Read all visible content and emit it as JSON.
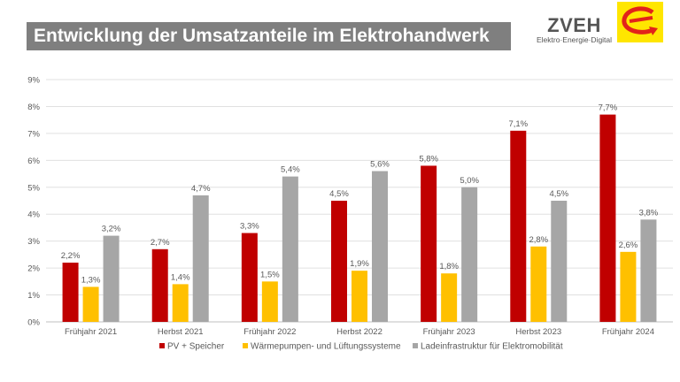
{
  "title": "Entwicklung der Umsatzanteile im Elektrohandwerk",
  "logo": {
    "name": "ZVEH",
    "subtitle": "Elektro·Energie·Digital",
    "brand_color": "#FFE600",
    "mark_color": "#E2231A"
  },
  "chart_data": {
    "type": "bar",
    "title": "",
    "xlabel": "",
    "ylabel": "",
    "ylim": [
      0,
      9
    ],
    "yticks": [
      "0%",
      "1%",
      "2%",
      "3%",
      "4%",
      "5%",
      "6%",
      "7%",
      "8%",
      "9%"
    ],
    "grid": true,
    "legend_position": "bottom",
    "categories": [
      "Frühjahr 2021",
      "Herbst 2021",
      "Frühjahr 2022",
      "Herbst 2022",
      "Frühjahr 2023",
      "Herbst 2023",
      "Frühjahr 2024"
    ],
    "series": [
      {
        "name": "PV + Speicher",
        "color": "#C00000",
        "values": [
          2.2,
          2.7,
          3.3,
          4.5,
          5.8,
          7.1,
          7.7
        ],
        "labels": [
          "2,2%",
          "2,7%",
          "3,3%",
          "4,5%",
          "5,8%",
          "7,1%",
          "7,7%"
        ]
      },
      {
        "name": "Wärmepumpen- und Lüftungssysteme",
        "color": "#FFC000",
        "values": [
          1.3,
          1.4,
          1.5,
          1.9,
          1.8,
          2.8,
          2.6
        ],
        "labels": [
          "1,3%",
          "1,4%",
          "1,5%",
          "1,9%",
          "1,8%",
          "2,8%",
          "2,6%"
        ]
      },
      {
        "name": "Ladeinfrastruktur für Elektromobilität",
        "color": "#A6A6A6",
        "values": [
          3.2,
          4.7,
          5.4,
          5.6,
          5.0,
          4.5,
          3.8
        ],
        "labels": [
          "3,2%",
          "4,7%",
          "5,4%",
          "5,6%",
          "5,0%",
          "4,5%",
          "3,8%"
        ]
      }
    ]
  }
}
